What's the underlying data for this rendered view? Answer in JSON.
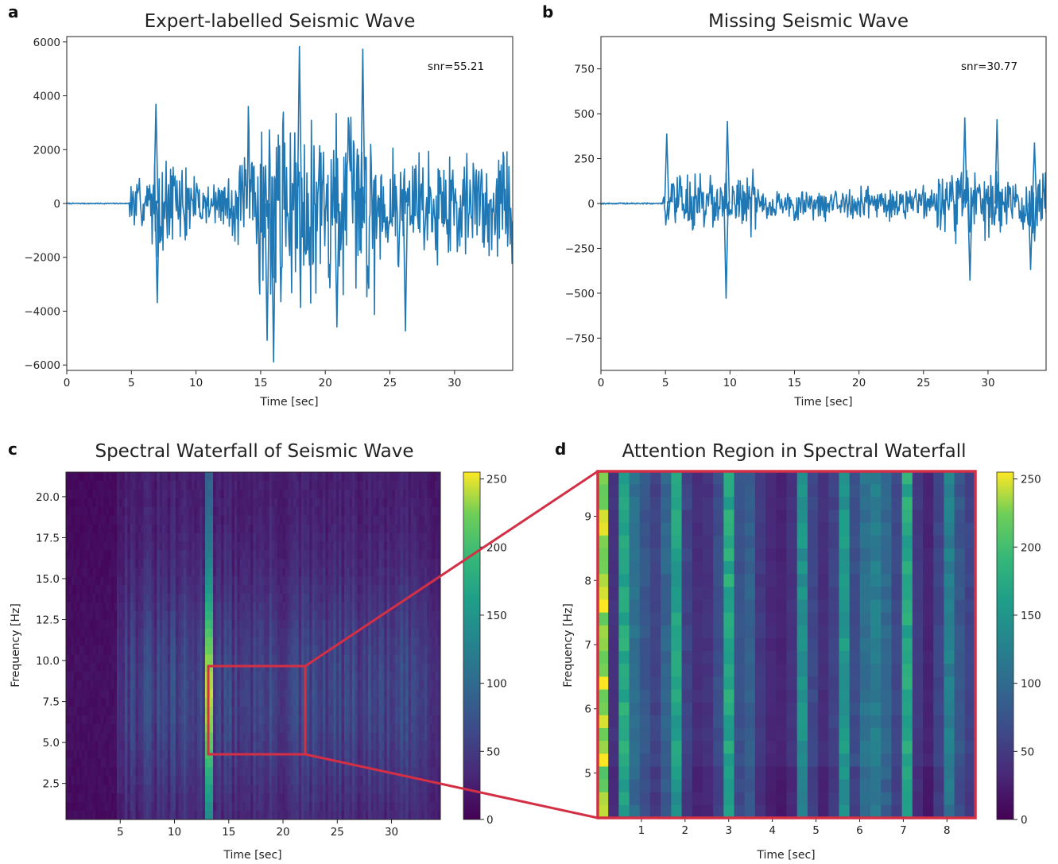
{
  "panels": [
    {
      "letter": "a",
      "title": "Expert-labelled Seismic Wave"
    },
    {
      "letter": "b",
      "title": "Missing Seismic Wave"
    },
    {
      "letter": "c",
      "title": "Spectral Waterfall of Seismic Wave"
    },
    {
      "letter": "d",
      "title": "Attention Region in Spectral Waterfall"
    }
  ],
  "colors": {
    "line": "#1f77b4",
    "highlight": "#d32f45"
  },
  "chart_data": [
    {
      "type": "line",
      "title": "Expert-labelled Seismic Wave",
      "xlabel": "Time [sec]",
      "ylabel": "",
      "xlim": [
        0,
        34.5
      ],
      "ylim": [
        -6200,
        6200
      ],
      "xticks": [
        "0",
        "5",
        "10",
        "15",
        "20",
        "25",
        "30"
      ],
      "yticks": [
        "6000",
        "4000",
        "2000",
        "0",
        "−2000",
        "−4000",
        "−6000"
      ],
      "annotation": "snr=55.21",
      "onset_sec": 4.8,
      "peaks": [
        [
          6.9,
          3700
        ],
        [
          7.0,
          -3700
        ],
        [
          16.0,
          -5900
        ],
        [
          18.0,
          5850
        ],
        [
          22.9,
          5750
        ],
        [
          15.5,
          -5100
        ],
        [
          26.2,
          -4750
        ],
        [
          20.9,
          -4600
        ]
      ]
    },
    {
      "type": "line",
      "title": "Missing Seismic Wave",
      "xlabel": "Time [sec]",
      "ylabel": "",
      "xlim": [
        0,
        34.5
      ],
      "ylim": [
        -930,
        930
      ],
      "xticks": [
        "0",
        "5",
        "10",
        "15",
        "20",
        "25",
        "30"
      ],
      "yticks": [
        "750",
        "500",
        "250",
        "0",
        "−250",
        "−500",
        "−750"
      ],
      "annotation": "snr=30.77",
      "onset_sec": 4.8,
      "peaks": [
        [
          5.1,
          390
        ],
        [
          9.8,
          460
        ],
        [
          9.7,
          -530
        ],
        [
          28.2,
          480
        ],
        [
          28.6,
          -430
        ],
        [
          33.6,
          340
        ],
        [
          33.3,
          -370
        ],
        [
          30.7,
          470
        ]
      ]
    },
    {
      "type": "heatmap",
      "title": "Spectral Waterfall of Seismic Wave",
      "xlabel": "Time [sec]",
      "ylabel": "Frequency [Hz]",
      "xlim": [
        0,
        34.5
      ],
      "ylim": [
        0.3,
        21.5
      ],
      "xticks": [
        "5",
        "10",
        "15",
        "20",
        "25",
        "30"
      ],
      "yticks": [
        "20.0",
        "17.5",
        "15.0",
        "12.5",
        "10.0",
        "7.5",
        "5.0",
        "2.5"
      ],
      "colorbar_ticks": [
        "250",
        "200",
        "150",
        "100",
        "50",
        "0"
      ],
      "colorbar_range": [
        0,
        255
      ],
      "highlight_region": {
        "time": [
          13.2,
          22.0
        ],
        "freq": [
          4.3,
          9.7
        ]
      }
    },
    {
      "type": "heatmap",
      "title": "Attention Region in Spectral Waterfall",
      "xlabel": "Time [sec]",
      "ylabel": "Frequency [Hz]",
      "xlim": [
        0,
        8.65
      ],
      "ylim": [
        4.3,
        9.7
      ],
      "xticks": [
        "1",
        "2",
        "3",
        "4",
        "5",
        "6",
        "7",
        "8"
      ],
      "yticks": [
        "9",
        "8",
        "7",
        "6",
        "5"
      ],
      "colorbar_ticks": [
        "250",
        "200",
        "150",
        "100",
        "50",
        "0"
      ],
      "colorbar_range": [
        0,
        255
      ],
      "column_levels": [
        245,
        45,
        175,
        110,
        80,
        60,
        95,
        165,
        60,
        40,
        45,
        70,
        175,
        75,
        90,
        50,
        35,
        30,
        45,
        150,
        65,
        40,
        60,
        155,
        70,
        110,
        125,
        100,
        65,
        175,
        50,
        30,
        60,
        125,
        80,
        60
      ]
    }
  ]
}
